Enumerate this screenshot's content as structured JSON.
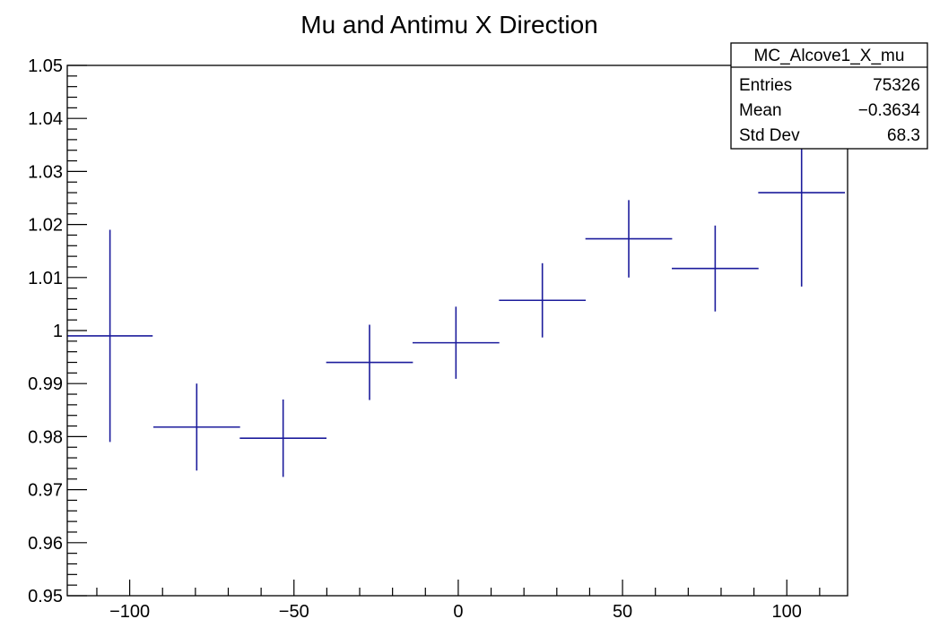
{
  "chart_data": {
    "type": "scatter",
    "title": "Mu and Antimu X Direction",
    "xlabel": "",
    "ylabel": "",
    "xlim": [
      -119,
      118.5
    ],
    "ylim": [
      0.95,
      1.05
    ],
    "grid": false,
    "x_ticks": [
      -100,
      -50,
      0,
      50,
      100
    ],
    "x_tick_labels": [
      "−100",
      "−50",
      "0",
      "50",
      "100"
    ],
    "y_ticks": [
      0.95,
      0.96,
      0.97,
      0.98,
      0.99,
      1.0,
      1.01,
      1.02,
      1.03,
      1.04,
      1.05
    ],
    "y_tick_labels": [
      "0.95",
      "0.96",
      "0.97",
      "0.98",
      "0.99",
      "1",
      "1.01",
      "1.02",
      "1.03",
      "1.04",
      "1.05"
    ],
    "series": [
      {
        "color": "#1c1c9c",
        "points": [
          {
            "x": -106.0,
            "xerr": 13.0,
            "y": 0.999,
            "yerr": 0.02
          },
          {
            "x": -79.6,
            "xerr": 13.2,
            "y": 0.9818,
            "yerr": 0.0082
          },
          {
            "x": -53.3,
            "xerr": 13.2,
            "y": 0.9797,
            "yerr": 0.0073
          },
          {
            "x": -27.0,
            "xerr": 13.2,
            "y": 0.994,
            "yerr": 0.0071
          },
          {
            "x": -0.7,
            "xerr": 13.2,
            "y": 0.9977,
            "yerr": 0.0068
          },
          {
            "x": 25.6,
            "xerr": 13.2,
            "y": 1.0057,
            "yerr": 0.007
          },
          {
            "x": 51.9,
            "xerr": 13.2,
            "y": 1.0173,
            "yerr": 0.0073
          },
          {
            "x": 78.2,
            "xerr": 13.2,
            "y": 1.0117,
            "yerr": 0.0081
          },
          {
            "x": 104.5,
            "xerr": 13.2,
            "y": 1.026,
            "yerr": 0.0177
          }
        ]
      }
    ],
    "stats_box": {
      "position": "top-right",
      "name": "MC_Alcove1_X_mu",
      "rows": [
        {
          "label": "Entries",
          "value": "75326"
        },
        {
          "label": "Mean",
          "value": "−0.3634"
        },
        {
          "label": "Std Dev",
          "value": "68.3"
        }
      ]
    }
  }
}
